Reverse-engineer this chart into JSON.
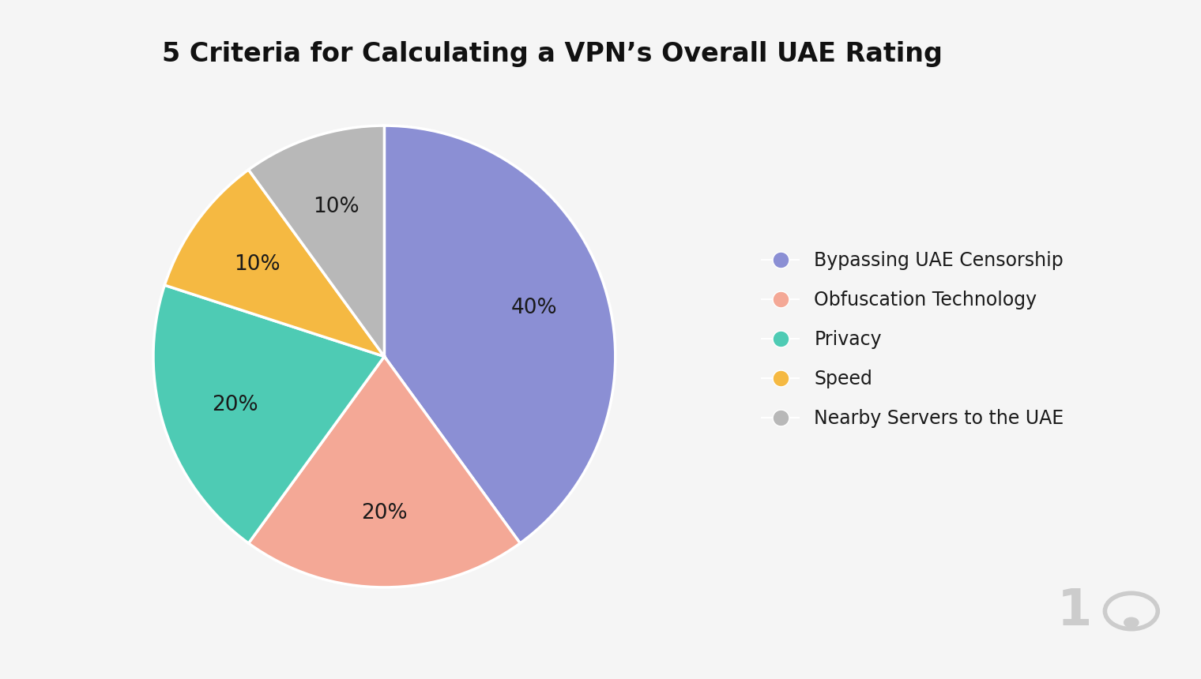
{
  "title": "5 Criteria for Calculating a VPN’s Overall UAE Rating",
  "labels": [
    "Bypassing UAE Censorship",
    "Obfuscation Technology",
    "Privacy",
    "Speed",
    "Nearby Servers to the UAE"
  ],
  "values": [
    40,
    20,
    20,
    10,
    10
  ],
  "colors": [
    "#8b8fd4",
    "#f4a896",
    "#4ecbb4",
    "#f5b942",
    "#b8b8b8"
  ],
  "background_color": "#f5f5f5",
  "title_fontsize": 24,
  "legend_fontsize": 17,
  "autopct_fontsize": 19,
  "startangle": 90,
  "watermark_text": "1",
  "watermark_color": "#cccccc"
}
